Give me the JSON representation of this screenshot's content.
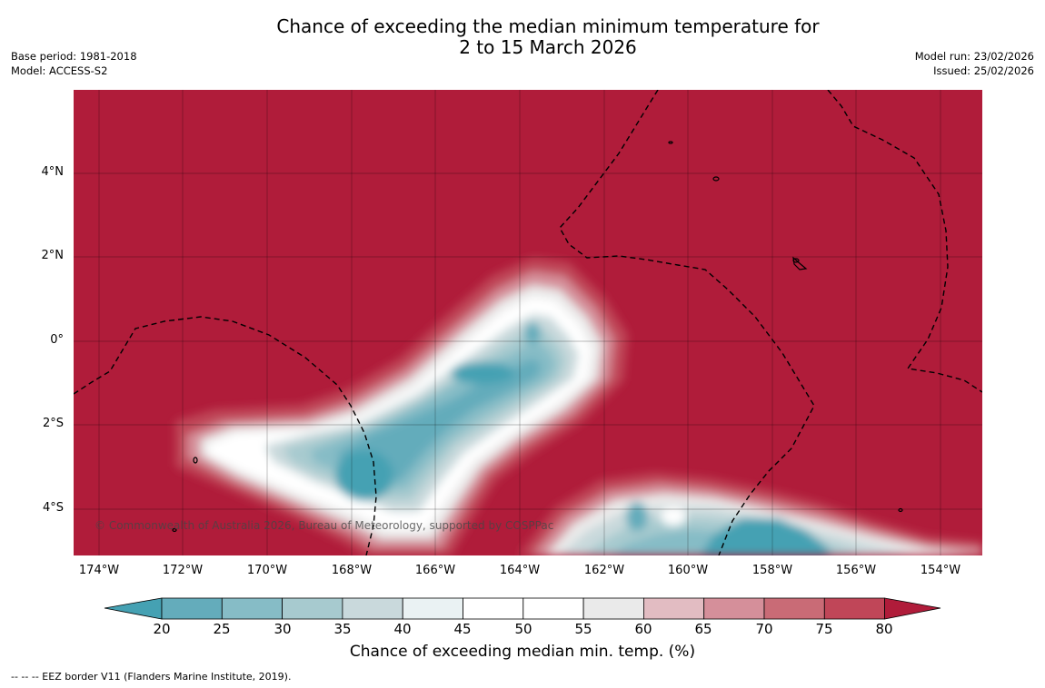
{
  "title": {
    "line1": "Chance of exceeding the median minimum temperature for",
    "line2": "2 to 15 March 2026"
  },
  "meta": {
    "base_period": "Base period: 1981-2018",
    "model": "Model: ACCESS-S2",
    "model_run": "Model run: 23/02/2026",
    "issued": "Issued: 25/02/2026"
  },
  "map": {
    "x_ticks": [
      "174°W",
      "172°W",
      "170°W",
      "168°W",
      "166°W",
      "164°W",
      "162°W",
      "160°W",
      "158°W",
      "156°W",
      "154°W"
    ],
    "y_ticks": [
      "4°N",
      "2°N",
      "0°",
      "2°S",
      "4°S"
    ],
    "copyright": "© Commonwealth of Australia 2026, Bureau of Meteorology, supported by COSPPac",
    "colors": {
      "hot": "#b01c3a",
      "border": "#000000"
    }
  },
  "colorbar": {
    "label": "Chance of exceeding median min. temp. (%)",
    "ticks": [
      "20",
      "25",
      "30",
      "35",
      "40",
      "45",
      "50",
      "55",
      "60",
      "65",
      "70",
      "75",
      "80"
    ],
    "colors": [
      "#45a1b3",
      "#64acbb",
      "#86bcc6",
      "#a7cacf",
      "#c9d9dc",
      "#eaf2f3",
      "#ffffff",
      "#ffffff",
      "#eaeaea",
      "#e2bcc2",
      "#d58f9a",
      "#c96b76",
      "#c04658",
      "#b01c3a"
    ]
  },
  "footnote": "--  --  -- EEZ border V11 (Flanders Marine Institute, 2019)."
}
